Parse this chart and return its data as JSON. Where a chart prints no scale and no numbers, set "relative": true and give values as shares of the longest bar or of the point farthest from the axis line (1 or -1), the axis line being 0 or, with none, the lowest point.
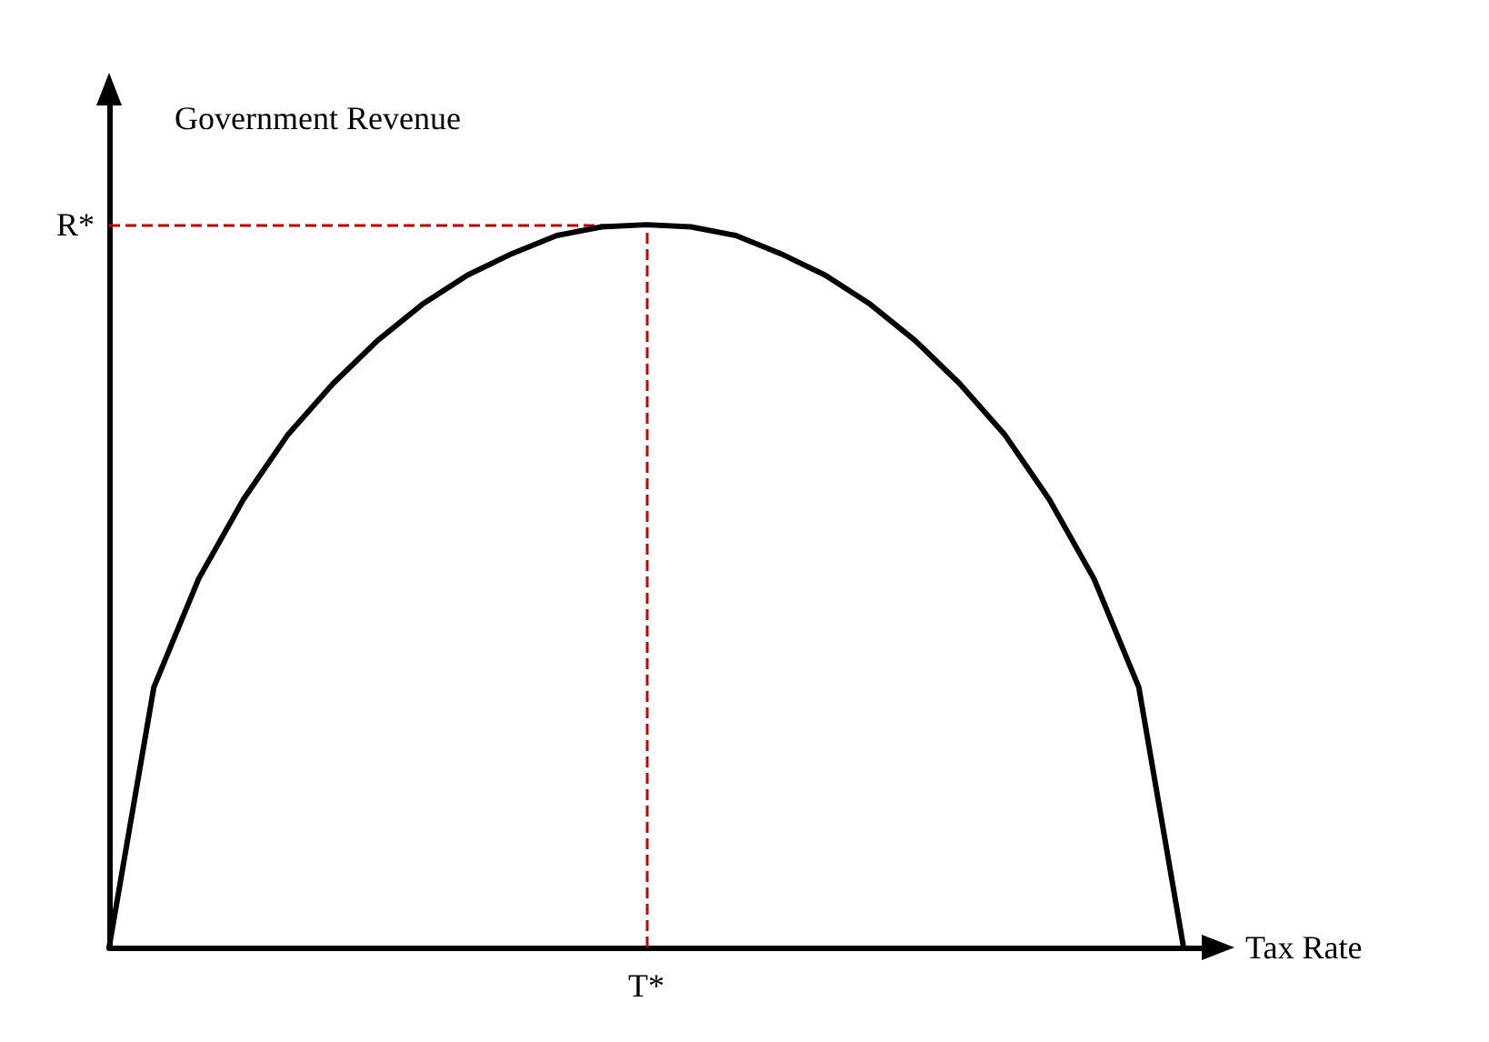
{
  "chart_data": {
    "type": "line",
    "relative": true,
    "xlabel": "Tax Rate",
    "ylabel": "Government Revenue",
    "categories": [
      null,
      null,
      null,
      null,
      null,
      null,
      null,
      null,
      null,
      null,
      null,
      null,
      null,
      null,
      null,
      null,
      null,
      null,
      null,
      null,
      null,
      null,
      null,
      null,
      null
    ],
    "series": [
      {
        "color": "#000000",
        "values": [
          0,
          0.36,
          0.51,
          0.62,
          0.71,
          0.78,
          0.84,
          0.89,
          0.93,
          0.96,
          0.985,
          0.997,
          1,
          0.997,
          0.985,
          0.96,
          0.93,
          0.89,
          0.84,
          0.78,
          0.71,
          0.62,
          0.51,
          0.36,
          0
        ]
      }
    ],
    "ref_lines": [
      {
        "axis": "y",
        "value": 1,
        "label": "R*",
        "color": "#cc0000",
        "line_style": "dashed"
      },
      {
        "axis": "x",
        "label": "T*",
        "color": "#cc0000",
        "line_style": "dashed"
      }
    ],
    "marker": "none",
    "line_style": "solid",
    "grid": false
  }
}
